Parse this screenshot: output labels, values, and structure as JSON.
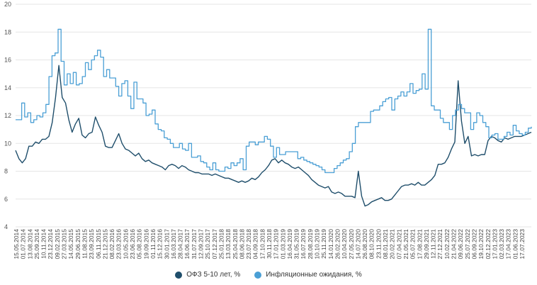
{
  "chart_data": {
    "type": "line",
    "title": "",
    "xlabel": "",
    "ylabel": "",
    "ylim": [
      4,
      20
    ],
    "yticks": [
      4,
      6,
      8,
      10,
      12,
      14,
      16,
      18,
      20
    ],
    "grid": true,
    "legend_position": "bottom-center",
    "x_tick_labels": [
      "15.05.2014",
      "01.07.2014",
      "13.08.2014",
      "25.09.2014",
      "10.11.2014",
      "23.12.2014",
      "09.02.2015",
      "27.03.2015",
      "14.05.2015",
      "29.06.2015",
      "11.08.2015",
      "23.09.2015",
      "06.11.2015",
      "21.12.2015",
      "08.02.2016",
      "23.03.2016",
      "10.05.2016",
      "23.06.2016",
      "05.08.2016",
      "19.09.2016",
      "01.11.2016",
      "15.12.2016",
      "30.01.2017",
      "16.03.2017",
      "28.04.2017",
      "16.06.2017",
      "31.07.2017",
      "12.09.2017",
      "25.10.2017",
      "07.12.2017",
      "25.01.2018",
      "13.03.2018",
      "25.04.2018",
      "08.06.2018",
      "23.07.2018",
      "04.09.2018",
      "17.10.2018",
      "30.11.2018",
      "17.01.2019",
      "01.03.2019",
      "16.04.2019",
      "31.05.2019",
      "16.07.2019",
      "28.08.2019",
      "10.10.2019",
      "25.11.2019",
      "14.01.2020",
      "26.02.2020",
      "10.04.2020",
      "27.05.2020",
      "14.07.2020",
      "26.08.2020",
      "08.10.2020",
      "23.11.2020",
      "08.01.2021",
      "20.02.2021",
      "07.04.2021",
      "21.05.2021",
      "05.07.2021",
      "17.08.2021",
      "29.09.2021",
      "12.11.2021",
      "27.12.2021",
      "10.02.2022",
      "21.04.2022",
      "09.06.2022",
      "25.07.2022",
      "06.09.2022",
      "19.10.2022",
      "02.12.2022",
      "17.01.2023",
      "02.03.2023",
      "17.04.2023",
      "01.06.2023",
      "17.07.2023"
    ],
    "series": [
      {
        "name": "ОФЗ 5-10 лет, %",
        "color": "#1f4e6b",
        "values": [
          9.5,
          8.9,
          8.6,
          8.9,
          9.8,
          9.8,
          10.1,
          10.0,
          10.3,
          10.3,
          10.5,
          11.5,
          13.3,
          15.6,
          13.3,
          12.9,
          11.7,
          10.8,
          11.4,
          11.8,
          10.6,
          10.4,
          10.7,
          10.8,
          11.9,
          11.3,
          10.8,
          9.8,
          9.7,
          9.7,
          10.2,
          10.7,
          10.0,
          9.6,
          9.5,
          9.3,
          9.1,
          9.3,
          8.9,
          8.7,
          8.8,
          8.6,
          8.5,
          8.4,
          8.3,
          8.1,
          8.4,
          8.5,
          8.4,
          8.2,
          8.4,
          8.3,
          8.1,
          8.0,
          7.9,
          7.9,
          7.8,
          7.8,
          7.8,
          7.7,
          7.8,
          7.7,
          7.6,
          7.5,
          7.5,
          7.4,
          7.3,
          7.2,
          7.3,
          7.2,
          7.3,
          7.5,
          7.4,
          7.6,
          7.9,
          8.1,
          8.4,
          8.8,
          8.9,
          8.6,
          8.8,
          8.6,
          8.5,
          8.3,
          8.2,
          8.3,
          8.1,
          7.9,
          7.7,
          7.4,
          7.2,
          7.0,
          6.9,
          6.8,
          6.9,
          6.5,
          6.4,
          6.5,
          6.4,
          6.2,
          6.2,
          6.2,
          6.1,
          8.0,
          6.2,
          5.5,
          5.6,
          5.8,
          5.9,
          6.0,
          6.1,
          5.9,
          5.9,
          6.0,
          6.3,
          6.6,
          6.9,
          7.0,
          7.0,
          7.1,
          7.0,
          7.2,
          7.0,
          7.0,
          7.2,
          7.4,
          7.7,
          8.5,
          8.5,
          8.6,
          9.0,
          9.6,
          10.1,
          14.5,
          11.6,
          10.0,
          10.5,
          9.1,
          9.2,
          9.1,
          9.2,
          9.2,
          10.2,
          10.5,
          10.4,
          10.2,
          10.1,
          10.4,
          10.3,
          10.4,
          10.5,
          10.5,
          10.5,
          10.6,
          10.7,
          10.8
        ]
      },
      {
        "name": "Инфляционные ожидания, %",
        "color": "#4a9fd5",
        "values": [
          11.7,
          11.7,
          12.9,
          11.9,
          12.2,
          11.5,
          11.7,
          12.0,
          11.9,
          12.2,
          12.8,
          14.8,
          16.3,
          16.5,
          18.2,
          15.9,
          14.2,
          15.0,
          14.3,
          15.1,
          14.2,
          14.3,
          14.8,
          15.8,
          15.3,
          16.0,
          16.3,
          16.7,
          16.2,
          14.8,
          15.3,
          14.7,
          14.7,
          14.1,
          13.4,
          14.3,
          14.5,
          13.4,
          12.5,
          14.4,
          13.2,
          13.2,
          12.9,
          12.0,
          12.1,
          12.4,
          11.4,
          11.0,
          10.9,
          10.4,
          10.3,
          10.0,
          9.7,
          9.7,
          10.0,
          9.6,
          9.5,
          10.0,
          9.0,
          9.0,
          9.1,
          8.7,
          8.6,
          8.3,
          8.1,
          8.6,
          8.1,
          8.0,
          8.0,
          8.3,
          8.2,
          8.6,
          8.4,
          8.6,
          8.9,
          8.1,
          9.8,
          10.1,
          10.1,
          9.9,
          10.1,
          10.1,
          10.5,
          10.3,
          9.8,
          9.0,
          9.7,
          9.2,
          9.2,
          9.4,
          9.4,
          9.4,
          9.4,
          8.9,
          9.0,
          8.8,
          8.7,
          8.6,
          8.5,
          8.4,
          8.3,
          8.1,
          7.9,
          7.9,
          7.9,
          8.2,
          8.4,
          8.6,
          8.8,
          8.9,
          9.4,
          10.0,
          11.2,
          11.5,
          11.5,
          11.5,
          11.5,
          12.3,
          12.4,
          12.4,
          12.7,
          13.0,
          13.2,
          13.3,
          12.4,
          13.2,
          13.4,
          13.7,
          13.4,
          13.7,
          14.3,
          13.6,
          13.8,
          13.9,
          15.0,
          13.9,
          18.2,
          12.7,
          12.4,
          12.4,
          11.8,
          11.5,
          11.5,
          11.0,
          12.0,
          12.4,
          12.8,
          12.5,
          12.2,
          12.2,
          11.0,
          11.5,
          12.2,
          12.0,
          11.5,
          11.2,
          10.4,
          10.6,
          10.7,
          10.3,
          10.3,
          10.5,
          10.8,
          10.6,
          11.3,
          10.9,
          10.7,
          10.6,
          10.8,
          11.1,
          11.2
        ]
      }
    ]
  }
}
